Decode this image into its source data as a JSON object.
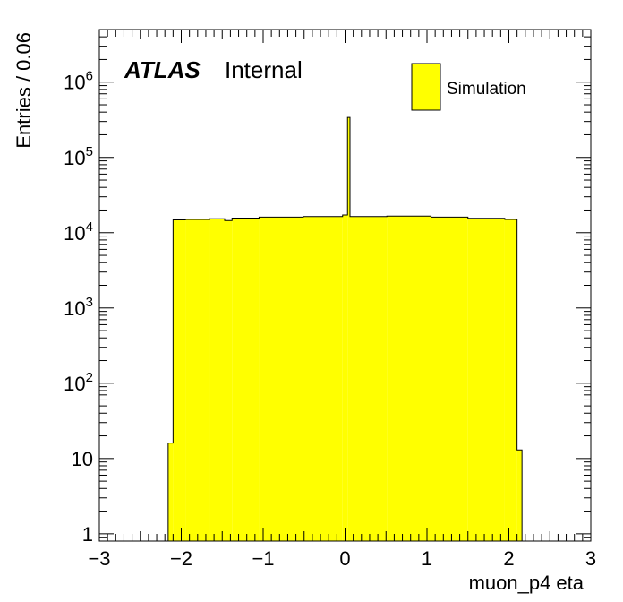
{
  "chart_data": {
    "type": "histogram",
    "title": "",
    "xlabel": "muon_p4 eta",
    "ylabel": "Entries / 0.06",
    "xlim": [
      -3,
      3
    ],
    "ylim": [
      0.8,
      5000000
    ],
    "yscale": "log",
    "bin_width": 0.06,
    "x_ticks": [
      -3,
      -2,
      -1,
      0,
      1,
      2,
      3
    ],
    "x_tick_labels": [
      "−3",
      "−2",
      "−1",
      "0",
      "1",
      "2",
      "3"
    ],
    "y_ticks": [
      {
        "value": 1,
        "base": "1",
        "exp": ""
      },
      {
        "value": 10,
        "base": "10",
        "exp": ""
      },
      {
        "value": 100,
        "base": "10",
        "exp": "2"
      },
      {
        "value": 1000,
        "base": "10",
        "exp": "3"
      },
      {
        "value": 10000,
        "base": "10",
        "exp": "4"
      },
      {
        "value": 100000,
        "base": "10",
        "exp": "5"
      },
      {
        "value": 1000000,
        "base": "10",
        "exp": "6"
      }
    ],
    "series": [
      {
        "name": "Simulation",
        "color": "#ffff00",
        "edge_color": "#000000",
        "bins": [
          {
            "x0": -2.16,
            "x1": -2.1,
            "value": 16
          },
          {
            "x0": -2.1,
            "x1": -1.95,
            "value": 14800
          },
          {
            "x0": -1.95,
            "x1": -1.65,
            "value": 15000
          },
          {
            "x0": -1.65,
            "x1": -1.47,
            "value": 15300
          },
          {
            "x0": -1.47,
            "x1": -1.38,
            "value": 14500
          },
          {
            "x0": -1.38,
            "x1": -1.05,
            "value": 15600
          },
          {
            "x0": -1.05,
            "x1": -0.51,
            "value": 16100
          },
          {
            "x0": -0.51,
            "x1": -0.03,
            "value": 16400
          },
          {
            "x0": -0.03,
            "x1": 0.03,
            "value": 17200
          },
          {
            "x0": 0.03,
            "x1": 0.06,
            "value": 340000
          },
          {
            "x0": 0.06,
            "x1": 0.51,
            "value": 16400
          },
          {
            "x0": 0.51,
            "x1": 1.05,
            "value": 16600
          },
          {
            "x0": 1.05,
            "x1": 1.5,
            "value": 16100
          },
          {
            "x0": 1.5,
            "x1": 1.95,
            "value": 15500
          },
          {
            "x0": 1.95,
            "x1": 2.1,
            "value": 15000
          },
          {
            "x0": 2.1,
            "x1": 2.16,
            "value": 13
          }
        ]
      }
    ],
    "legend": {
      "position": "top-right",
      "entries": [
        "Simulation"
      ]
    },
    "annotations": {
      "atlas": "ATLAS",
      "status": "Internal"
    },
    "grid": false
  }
}
